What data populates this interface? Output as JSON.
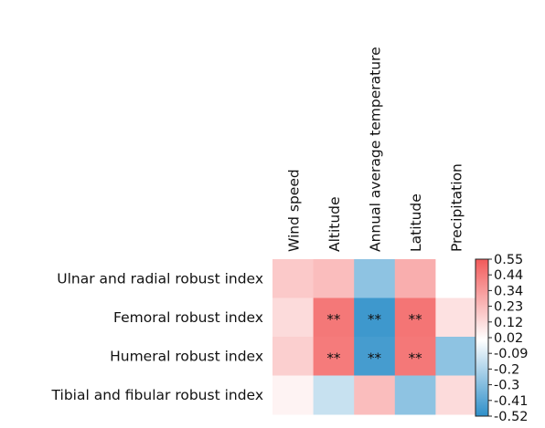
{
  "chart_data": {
    "type": "heatmap",
    "rows": [
      "Ulnar and radial robust index",
      "Femoral robust index",
      "Humeral robust index",
      "Tibial and fibular robust index"
    ],
    "columns": [
      "Wind speed",
      "Altitude",
      "Annual average temperature",
      "Latitude",
      "Precipitation"
    ],
    "values": [
      [
        0.18,
        0.22,
        -0.28,
        0.27,
        0.0
      ],
      [
        0.12,
        0.45,
        -0.48,
        0.46,
        0.1
      ],
      [
        0.16,
        0.44,
        -0.46,
        0.45,
        -0.28
      ],
      [
        0.04,
        -0.14,
        0.22,
        -0.28,
        0.12
      ]
    ],
    "annotations": [
      [
        "",
        "",
        "",
        "",
        ""
      ],
      [
        "",
        "**",
        "**",
        "**",
        ""
      ],
      [
        "",
        "**",
        "**",
        "**",
        ""
      ],
      [
        "",
        "",
        "",
        "",
        ""
      ]
    ],
    "colorbar": {
      "min": -0.52,
      "max": 0.55,
      "ticks": [
        "0.55",
        "0.44",
        "0.34",
        "0.23",
        "0.12",
        "0.02",
        "-0.09",
        "-0.2",
        "-0.3",
        "-0.41",
        "-0.52"
      ],
      "colors": {
        "negative": "#2e8fc9",
        "zero": "#ffffff",
        "positive": "#f25a5a"
      }
    }
  }
}
